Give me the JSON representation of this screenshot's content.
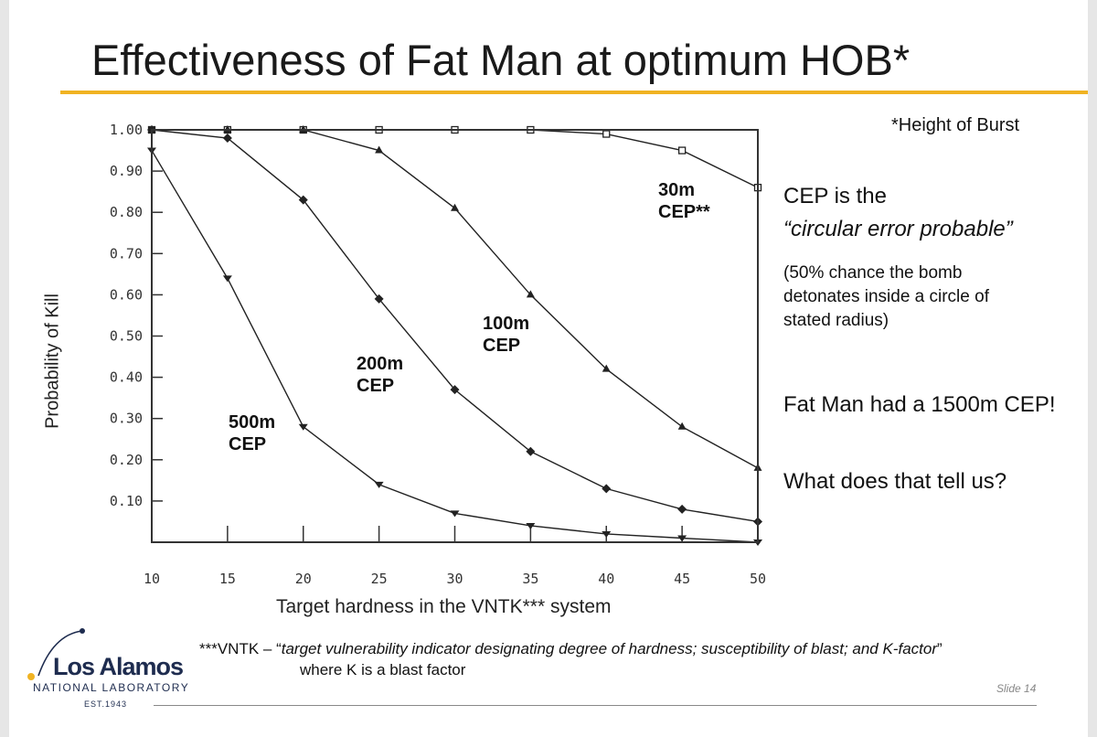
{
  "slide": {
    "title": "Effectiveness of Fat Man at optimum HOB*",
    "hob_note": "*Height of Burst",
    "cep_title_1": "CEP is the",
    "cep_title_2": "“circular error probable”",
    "cep_desc": "(50% chance the bomb detonates inside a circle of stated radius)",
    "fat_man": "Fat Man had a 1500m CEP!",
    "question": "What does that tell us?",
    "footnote_prefix": "***VNTK – “",
    "footnote_italic": "target vulnerability indicator designating degree of hardness; susceptibility of blast; and K-factor",
    "footnote_suffix": "”",
    "footnote_line2": "where K is a blast factor",
    "slide_number": "Slide 14",
    "logo_name": "Los Alamos",
    "logo_sub": "NATIONAL LABORATORY",
    "logo_est": "EST.1943",
    "accent_color": "#f0b323",
    "logo_color": "#1e2c4f"
  },
  "chart_data": {
    "type": "line",
    "xlabel": "Target hardness in the VNTK*** system",
    "ylabel": "Probability of Kill",
    "xlim": [
      10,
      50
    ],
    "ylim": [
      0,
      1.0
    ],
    "x_ticks": [
      "10",
      "15",
      "20",
      "25",
      "30",
      "35",
      "40",
      "45",
      "50"
    ],
    "y_ticks": [
      "1.00",
      "0.90",
      "0.80",
      "0.70",
      "0.60",
      "0.50",
      "0.40",
      "0.30",
      "0.20",
      "0.10"
    ],
    "x": [
      10,
      15,
      20,
      25,
      30,
      35,
      40,
      45,
      50
    ],
    "series": [
      {
        "name": "30m CEP**",
        "marker": "square",
        "values": [
          1.0,
          1.0,
          1.0,
          1.0,
          1.0,
          1.0,
          0.99,
          0.95,
          0.86
        ]
      },
      {
        "name": "100m CEP",
        "marker": "triangle",
        "values": [
          1.0,
          1.0,
          1.0,
          0.95,
          0.81,
          0.6,
          0.42,
          0.28,
          0.18
        ]
      },
      {
        "name": "200m CEP",
        "marker": "diamond",
        "values": [
          1.0,
          0.98,
          0.83,
          0.59,
          0.37,
          0.22,
          0.13,
          0.08,
          0.05
        ]
      },
      {
        "name": "500m CEP",
        "marker": "tri-down",
        "values": [
          0.95,
          0.64,
          0.28,
          0.14,
          0.07,
          0.04,
          0.02,
          0.01,
          0.0
        ]
      }
    ],
    "grid": false,
    "legend": "inline labels"
  }
}
